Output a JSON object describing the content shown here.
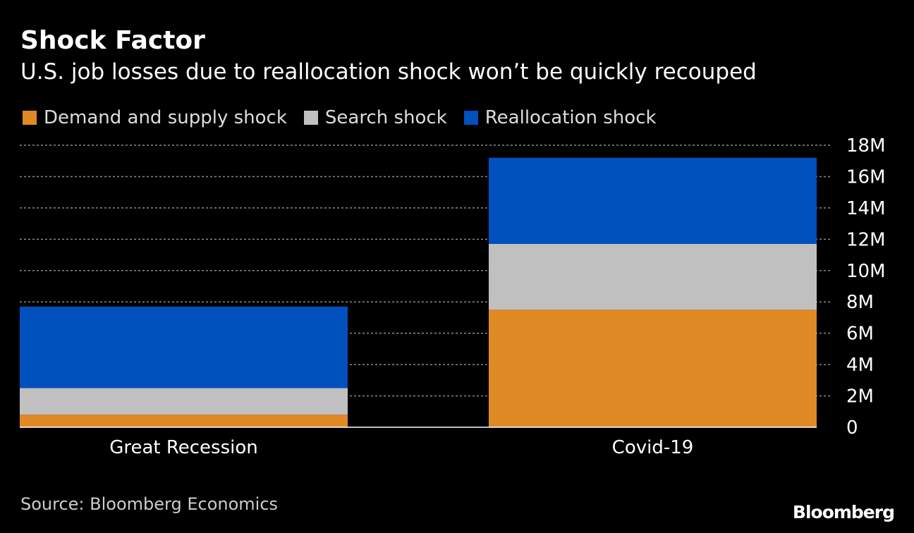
{
  "chart_data": {
    "type": "bar",
    "stacked": true,
    "title": "Shock Factor",
    "subtitle": "U.S. job losses due to reallocation shock won’t be quickly recouped",
    "categories": [
      "Great Recession",
      "Covid-19"
    ],
    "series": [
      {
        "name": "Demand and supply shock",
        "color": "#e08a25",
        "values": [
          0.8,
          7.5
        ]
      },
      {
        "name": "Search shock",
        "color": "#c0c0c0",
        "values": [
          1.7,
          4.2
        ]
      },
      {
        "name": "Reallocation shock",
        "color": "#0050be",
        "values": [
          5.2,
          5.5
        ]
      }
    ],
    "ylim": [
      0,
      18
    ],
    "yticks": [
      {
        "value": 0,
        "label": "0"
      },
      {
        "value": 2,
        "label": "2M"
      },
      {
        "value": 4,
        "label": "4M"
      },
      {
        "value": 6,
        "label": "6M"
      },
      {
        "value": 8,
        "label": "8M"
      },
      {
        "value": 10,
        "label": "10M"
      },
      {
        "value": 12,
        "label": "12M"
      },
      {
        "value": 14,
        "label": "14M"
      },
      {
        "value": 16,
        "label": "16M"
      },
      {
        "value": 18,
        "label": "18M"
      }
    ],
    "grid": true,
    "axis_side": "right",
    "legend_position": "top-left",
    "xlabel": "",
    "ylabel": ""
  },
  "source": "Source: Bloomberg Economics",
  "brand": "Bloomberg"
}
